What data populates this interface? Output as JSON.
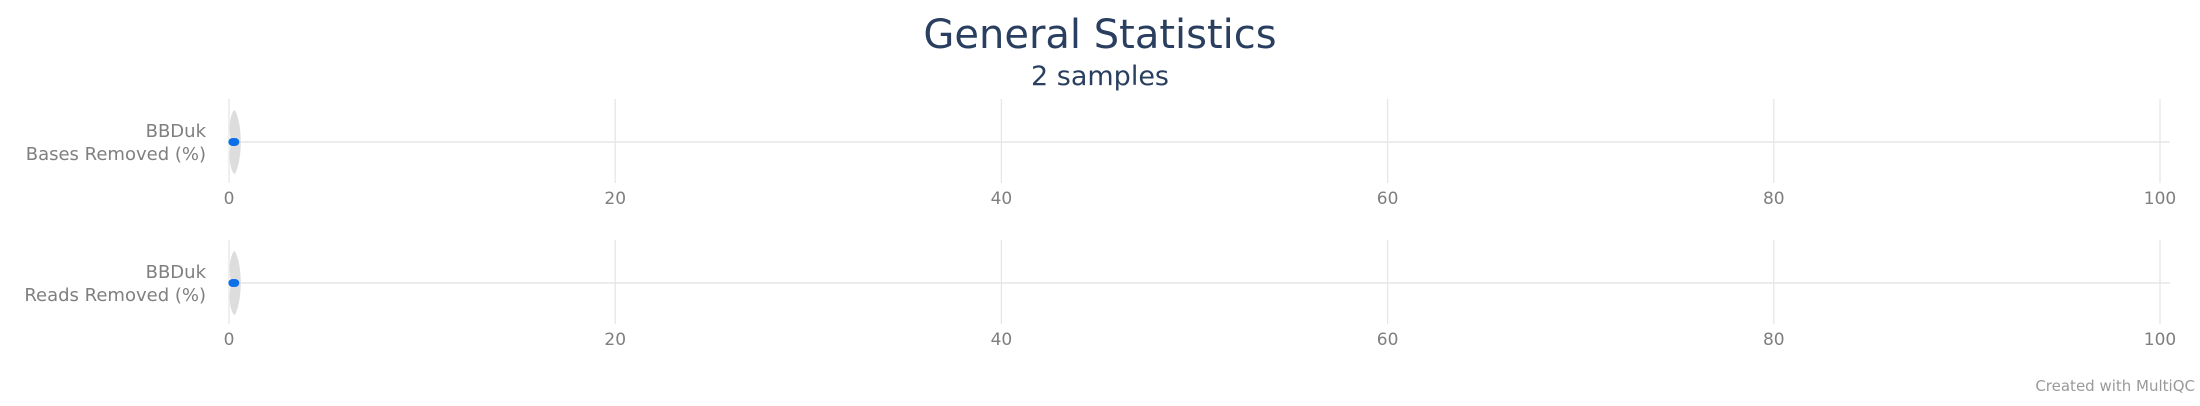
{
  "chart_data": {
    "type": "violin",
    "title": "General Statistics",
    "subtitle": "2 samples",
    "credit": "Created with MultiQC",
    "xlim": [
      0,
      100
    ],
    "tick_values": [
      0,
      20,
      40,
      60,
      80,
      100
    ],
    "tick_labels": [
      "0",
      "20",
      "40",
      "60",
      "80",
      "100"
    ],
    "grid": true,
    "rows": [
      {
        "label_line1": "BBDuk",
        "label_line2": "Bases Removed (%)",
        "values": [
          0.2,
          0.3
        ]
      },
      {
        "label_line1": "BBDuk",
        "label_line2": "Reads Removed (%)",
        "values": [
          0.2,
          0.3
        ]
      }
    ],
    "colors": {
      "point": "#0b6fe8",
      "violin": "#d9d9d9",
      "grid": "#e6e6e6",
      "title": "#2a3f5f"
    }
  }
}
